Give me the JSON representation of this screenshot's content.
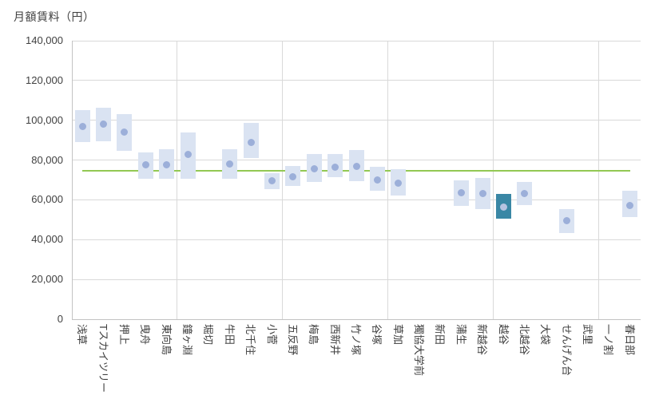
{
  "chart_data": {
    "type": "range-bar-with-point",
    "title": "月額賃料（円）",
    "ylabel": "月額賃料（円）",
    "xlabel": "",
    "ylim": [
      0,
      140000
    ],
    "ytick_interval": 20000,
    "ytick_labels": [
      "0",
      "20,000",
      "40,000",
      "60,000",
      "80,000",
      "100,000",
      "120,000",
      "140,000"
    ],
    "grid": true,
    "vertical_grid_every": 5,
    "legend": "none",
    "reference_line": {
      "value": 74700,
      "label": "",
      "color": "#92c853"
    },
    "highlight_index": 20,
    "categories": [
      "浅草",
      "Tスカイツリー",
      "押上",
      "曳舟",
      "東向島",
      "鐘ヶ淵",
      "堀切",
      "牛田",
      "北千住",
      "小菅",
      "五反野",
      "梅島",
      "西新井",
      "竹ノ塚",
      "谷塚",
      "草加",
      "獨協大学前",
      "新田",
      "蒲生",
      "新越谷",
      "越谷",
      "北越谷",
      "大袋",
      "せんげん台",
      "武里",
      "一ノ割",
      "春日部"
    ],
    "series": [
      {
        "name": "range_low",
        "values": [
          89000,
          89500,
          84500,
          70500,
          70500,
          70500,
          null,
          70500,
          81000,
          65500,
          67000,
          69000,
          71500,
          69500,
          64500,
          62000,
          null,
          null,
          57000,
          55500,
          50500,
          57500,
          null,
          43500,
          null,
          null,
          51500
        ]
      },
      {
        "name": "range_high",
        "values": [
          105000,
          106500,
          103000,
          84000,
          85500,
          94000,
          null,
          85500,
          98500,
          73500,
          77000,
          83000,
          83000,
          85000,
          76500,
          75500,
          null,
          null,
          70000,
          71000,
          63000,
          69000,
          null,
          55500,
          null,
          null,
          64500
        ]
      },
      {
        "name": "point",
        "values": [
          97000,
          98000,
          94000,
          77500,
          77500,
          83000,
          null,
          78000,
          89000,
          69500,
          71500,
          75500,
          76500,
          77000,
          70000,
          68500,
          null,
          null,
          63500,
          63000,
          56500,
          63000,
          null,
          49500,
          null,
          null,
          57000
        ]
      }
    ]
  },
  "colors": {
    "box_fill": "#dae3f2",
    "dot": "#9cafd9",
    "highlight_box": "#3a87a5",
    "highlight_dot": "#b7c3e1",
    "reference_line": "#92c853",
    "gridline": "#d9d9d9",
    "axis_line": "#c3c3c3",
    "text": "#404040"
  },
  "layout_note": ""
}
